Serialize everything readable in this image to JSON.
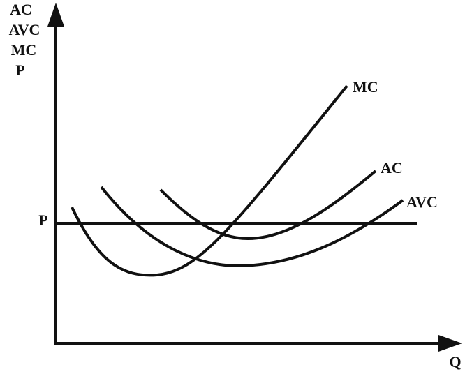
{
  "axes": {
    "y_label": [
      "AC",
      "AVC",
      "MC",
      "P"
    ],
    "x_label": "Q"
  },
  "price_line": {
    "label": "P"
  },
  "curves": [
    {
      "label": "MC"
    },
    {
      "label": "AC"
    },
    {
      "label": "AVC"
    }
  ]
}
